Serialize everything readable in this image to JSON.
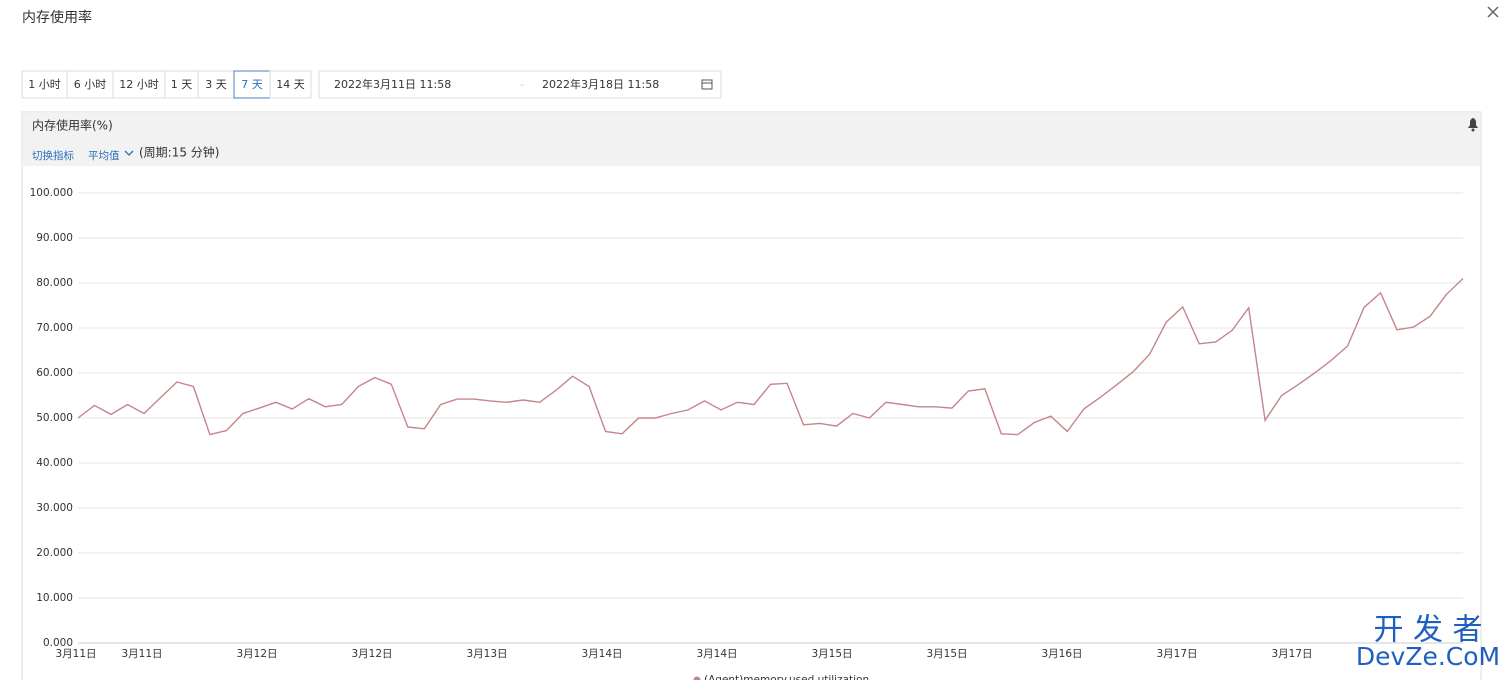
{
  "header": {
    "title": "内存使用率"
  },
  "time_range": {
    "options": [
      "1 小时",
      "6 小时",
      "12 小时",
      "1 天",
      "3 天",
      "7 天",
      "14 天"
    ]
  },
  "date_range": {
    "start": "2022年3月11日 11:58",
    "separator": "-",
    "end": "2022年3月18日 11:58"
  },
  "panel": {
    "title": "内存使用率(%)",
    "switch_metric": "切换指标",
    "aggregation": "平均值",
    "period": "(周期:15 分钟)"
  },
  "chart_data": {
    "type": "line",
    "series": [
      {
        "name": "(Agent)memory.used.utilization",
        "color": "#c4868a",
        "values": [
          50,
          52.8,
          50.8,
          53,
          51,
          54.5,
          58,
          57,
          46.3,
          47.2,
          51,
          52.2,
          53.5,
          52,
          54.3,
          52.5,
          53,
          57,
          59,
          57.5,
          48,
          47.6,
          53,
          54.2,
          54.2,
          53.8,
          53.5,
          54,
          53.5,
          56.2,
          59.3,
          57,
          47,
          46.5,
          50,
          50,
          51,
          51.8,
          53.8,
          51.8,
          53.5,
          53,
          57.5,
          57.7,
          48.5,
          48.8,
          48.2,
          51,
          50,
          53.5,
          53,
          52.5,
          52.5,
          52.2,
          56,
          56.5,
          46.5,
          46.3,
          49,
          50.4,
          47,
          52,
          54.6,
          57.4,
          60.3,
          64.2,
          71.3,
          74.7,
          66.5,
          66.9,
          69.5,
          74.5,
          49.5,
          55,
          57.4,
          60,
          62.8,
          66,
          74.6,
          77.8,
          69.6,
          70.2,
          72.6,
          77.5,
          81
        ]
      }
    ],
    "xtick_labels": [
      "3月11日",
      "3月11日",
      "3月12日",
      "3月12日",
      "3月13日",
      "3月14日",
      "3月14日",
      "3月15日",
      "3月15日",
      "3月16日",
      "3月17日",
      "3月17日"
    ],
    "ylim": [
      0,
      100
    ],
    "yticks": [
      {
        "value": 0,
        "label": "0.000"
      },
      {
        "value": 10,
        "label": "10.000"
      },
      {
        "value": 20,
        "label": "20.000"
      },
      {
        "value": 30,
        "label": "30.000"
      },
      {
        "value": 40,
        "label": "40.000"
      },
      {
        "value": 50,
        "label": "50.000"
      },
      {
        "value": 60,
        "label": "60.000"
      },
      {
        "value": 70,
        "label": "70.000"
      },
      {
        "value": 80,
        "label": "80.000"
      },
      {
        "value": 90,
        "label": "90.000"
      },
      {
        "value": 100,
        "label": "100.000"
      }
    ],
    "grid": true
  },
  "watermark": {
    "line1": "开 发 者",
    "line2": "DevZe.CoM"
  }
}
